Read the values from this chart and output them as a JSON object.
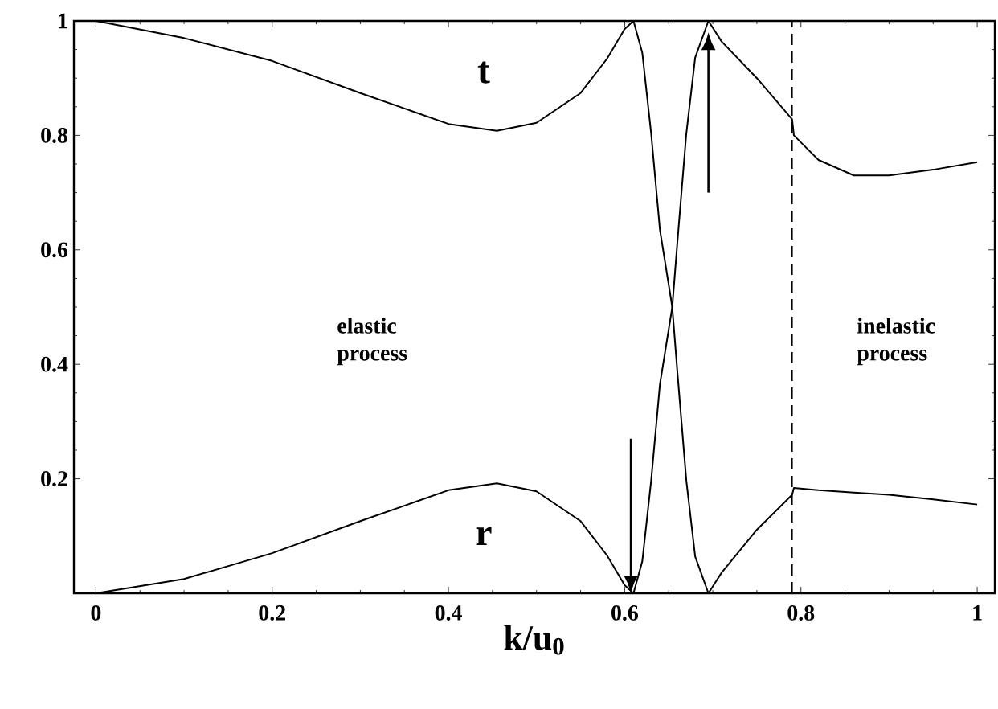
{
  "chart_data": {
    "type": "line",
    "xlabel": "k/u$_{0}$",
    "xlim": [
      -0.025,
      1.02
    ],
    "ylim": [
      0,
      1
    ],
    "xticks": [
      0,
      0.2,
      0.4,
      0.6,
      0.8,
      1
    ],
    "yticks": [
      0.2,
      0.4,
      0.6,
      0.8,
      1
    ],
    "x": [
      0,
      0.1,
      0.2,
      0.3,
      0.4,
      0.455,
      0.5,
      0.55,
      0.58,
      0.6,
      0.61,
      0.62,
      0.63,
      0.64,
      0.654,
      0.66,
      0.67,
      0.68,
      0.695,
      0.71,
      0.75,
      0.79,
      0.792,
      0.82,
      0.86,
      0.9,
      0.95,
      1.0
    ],
    "series": [
      {
        "name": "t",
        "color": "#000000",
        "values": [
          1,
          0.97,
          0.93,
          0.874,
          0.82,
          0.808,
          0.822,
          0.874,
          0.934,
          0.986,
          1,
          0.944,
          0.804,
          0.635,
          0.5,
          0.383,
          0.196,
          0.064,
          0,
          0.036,
          0.111,
          0.172,
          0.184,
          0.18,
          0.176,
          0.172,
          0.164,
          0.155
        ]
      },
      {
        "name": "r",
        "color": "#000000",
        "values": [
          0,
          0.025,
          0.07,
          0.126,
          0.18,
          0.192,
          0.178,
          0.126,
          0.066,
          0.014,
          0,
          0.056,
          0.196,
          0.365,
          0.5,
          0.617,
          0.804,
          0.936,
          1,
          0.964,
          0.9,
          0.828,
          0.8,
          0.757,
          0.73,
          0.73,
          0.74,
          0.753
        ]
      }
    ],
    "ref_lines": [
      {
        "axis": "x",
        "value": 0.79,
        "line_style": "dashed"
      }
    ],
    "annotations": [
      "elastic process",
      "inelastic process"
    ],
    "marker": "none",
    "line_style": "solid",
    "grid": false
  }
}
